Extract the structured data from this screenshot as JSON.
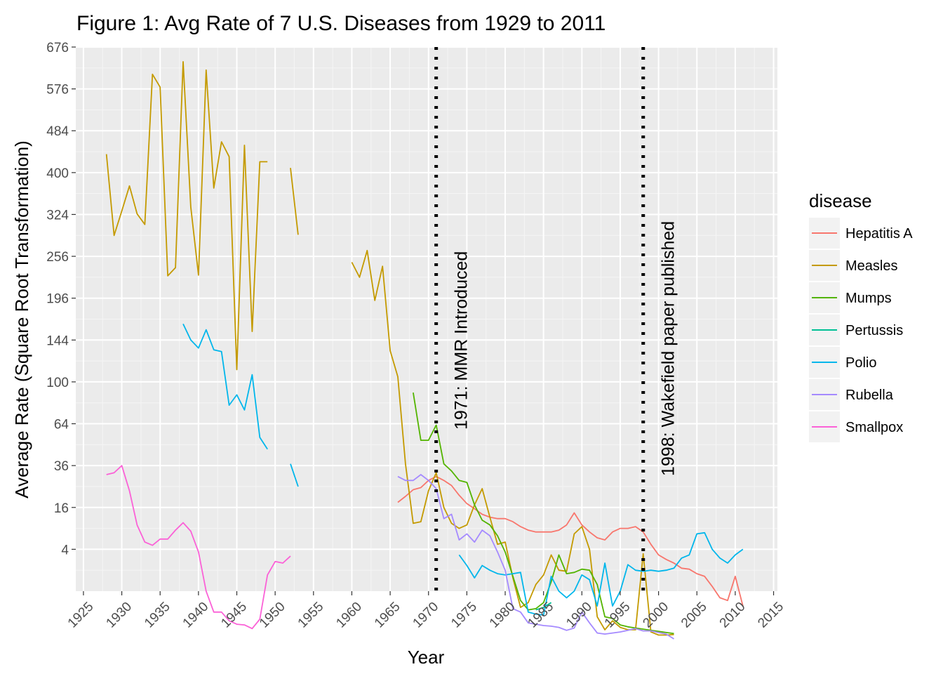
{
  "chart_data": {
    "type": "line",
    "title": "Figure 1: Avg Rate of 7 U.S. Diseases from 1929 to 2011",
    "xlabel": "Year",
    "ylabel": "Average Rate (Square Root Transformation)",
    "y_scale": "sqrt",
    "xlim": [
      1924,
      2015.5
    ],
    "ylim": [
      0,
      676
    ],
    "x_ticks": [
      1925,
      1930,
      1935,
      1940,
      1945,
      1950,
      1955,
      1960,
      1965,
      1970,
      1975,
      1980,
      1985,
      1990,
      1995,
      2000,
      2005,
      2010,
      2015
    ],
    "y_ticks": [
      4,
      16,
      36,
      64,
      100,
      144,
      196,
      256,
      324,
      400,
      484,
      576,
      676
    ],
    "grid": true,
    "legend": {
      "title": "disease",
      "placement": "right"
    },
    "annotations": [
      {
        "x": 1971,
        "text": "1971: MMR Introduced",
        "line": "dotted"
      },
      {
        "x": 1998,
        "text": "1998: Wakefield paper published",
        "line": "dotted"
      }
    ],
    "series": [
      {
        "name": "Hepatitis A",
        "color": "#F8766D",
        "points": [
          [
            1966,
            18
          ],
          [
            1967,
            20.5
          ],
          [
            1968,
            23.5
          ],
          [
            1969,
            24.5
          ],
          [
            1970,
            28
          ],
          [
            1971,
            30
          ],
          [
            1972,
            28
          ],
          [
            1973,
            25.5
          ],
          [
            1974,
            21
          ],
          [
            1975,
            17.5
          ],
          [
            1976,
            15.5
          ],
          [
            1977,
            13.5
          ],
          [
            1978,
            12.5
          ],
          [
            1979,
            12
          ],
          [
            1980,
            12
          ],
          [
            1981,
            11
          ],
          [
            1982,
            9.5
          ],
          [
            1983,
            8.5
          ],
          [
            1984,
            8
          ],
          [
            1985,
            8
          ],
          [
            1986,
            8
          ],
          [
            1987,
            8.5
          ],
          [
            1988,
            10
          ],
          [
            1989,
            14
          ],
          [
            1990,
            10
          ],
          [
            1991,
            8
          ],
          [
            1992,
            6.5
          ],
          [
            1993,
            6
          ],
          [
            1994,
            8
          ],
          [
            1995,
            9
          ],
          [
            1996,
            9
          ],
          [
            1997,
            9.5
          ],
          [
            1998,
            8
          ],
          [
            1999,
            5
          ],
          [
            2000,
            3
          ],
          [
            2001,
            2.3
          ],
          [
            2002,
            1.8
          ],
          [
            2003,
            1.2
          ],
          [
            2004,
            1.1
          ],
          [
            2005,
            0.7
          ],
          [
            2006,
            0.5
          ],
          [
            2007,
            0.05
          ],
          [
            2008,
            -0.1
          ],
          [
            2009,
            -0.2
          ],
          [
            2010,
            0.5
          ],
          [
            2011,
            -0.5
          ]
        ]
      },
      {
        "name": "Measles",
        "color": "#C49A00",
        "segments": [
          [
            [
              1928,
              436
            ],
            [
              1929,
              289
            ],
            [
              1930,
              330
            ],
            [
              1931,
              375
            ],
            [
              1932,
              325
            ],
            [
              1933,
              307
            ],
            [
              1934,
              610
            ],
            [
              1935,
              580
            ],
            [
              1936,
              227
            ],
            [
              1937,
              239
            ],
            [
              1938,
              640
            ],
            [
              1939,
              337
            ],
            [
              1940,
              228
            ],
            [
              1941,
              620
            ],
            [
              1942,
              371
            ],
            [
              1943,
              461
            ],
            [
              1944,
              431
            ],
            [
              1945,
              112
            ],
            [
              1946,
              454
            ],
            [
              1947,
              154
            ],
            [
              1948,
              421
            ],
            [
              1949,
              421
            ]
          ],
          [
            [
              1952,
              409
            ],
            [
              1953,
              290
            ]
          ],
          [
            [
              1960,
              247
            ],
            [
              1961,
              225
            ],
            [
              1962,
              265
            ],
            [
              1963,
              193
            ],
            [
              1964,
              241
            ],
            [
              1965,
              132
            ],
            [
              1966,
              105
            ],
            [
              1967,
              37
            ],
            [
              1968,
              10.5
            ],
            [
              1969,
              11
            ],
            [
              1970,
              23
            ],
            [
              1971,
              32
            ],
            [
              1972,
              16
            ],
            [
              1973,
              10.5
            ],
            [
              1974,
              9
            ],
            [
              1975,
              10
            ],
            [
              1976,
              17
            ],
            [
              1977,
              24
            ],
            [
              1978,
              12.5
            ],
            [
              1979,
              5
            ],
            [
              1980,
              5.5
            ],
            [
              1981,
              0.4
            ],
            [
              1982,
              -0.6
            ],
            [
              1983,
              -0.3
            ],
            [
              1984,
              0.1
            ],
            [
              1985,
              0.6
            ],
            [
              1986,
              3
            ],
            [
              1987,
              1
            ],
            [
              1988,
              0.9
            ],
            [
              1989,
              7.5
            ],
            [
              1990,
              9.5
            ],
            [
              1991,
              4
            ],
            [
              1992,
              -1.5
            ],
            [
              1993,
              -3.4
            ],
            [
              1994,
              -2
            ],
            [
              1995,
              -3
            ],
            [
              1996,
              -3.4
            ],
            [
              1997,
              -3.4
            ],
            [
              1998,
              3.2
            ],
            [
              1999,
              -3.8
            ],
            [
              2000,
              -4.4
            ],
            [
              2001,
              -4.4
            ],
            [
              2002,
              -4.3
            ]
          ]
        ]
      },
      {
        "name": "Mumps",
        "color": "#53B400",
        "points": [
          [
            1968,
            90
          ],
          [
            1969,
            52
          ],
          [
            1970,
            52
          ],
          [
            1971,
            63
          ],
          [
            1972,
            37
          ],
          [
            1973,
            33
          ],
          [
            1974,
            28
          ],
          [
            1975,
            27
          ],
          [
            1976,
            17
          ],
          [
            1977,
            11.5
          ],
          [
            1978,
            10
          ],
          [
            1979,
            7
          ],
          [
            1980,
            3.5
          ],
          [
            1981,
            0.5
          ],
          [
            1982,
            -0.2
          ],
          [
            1983,
            -0.8
          ],
          [
            1984,
            -0.7
          ],
          [
            1985,
            -0.3
          ],
          [
            1986,
            0.2
          ],
          [
            1987,
            3
          ],
          [
            1988,
            0.7
          ],
          [
            1989,
            0.8
          ],
          [
            1990,
            1.1
          ],
          [
            1991,
            1
          ],
          [
            1992,
            0.1
          ],
          [
            1993,
            -1.5
          ],
          [
            1994,
            -1.7
          ],
          [
            1995,
            -2.6
          ],
          [
            1996,
            -2.9
          ],
          [
            1997,
            -3.1
          ],
          [
            1998,
            -3.3
          ],
          [
            1999,
            -3.5
          ],
          [
            2000,
            -3.7
          ],
          [
            2001,
            -3.9
          ],
          [
            2002,
            -4.1
          ]
        ]
      },
      {
        "name": "Pertussis",
        "color": "#00C094",
        "points": [
          [
            1984,
            -0.8
          ],
          [
            1985,
            -0.6
          ],
          [
            1986,
            -0.3
          ]
        ]
      },
      {
        "name": "Polio",
        "color": "#00B6EB",
        "segments": [
          [
            [
              1938,
              163
            ],
            [
              1939,
              144
            ],
            [
              1940,
              135
            ],
            [
              1941,
              156
            ],
            [
              1942,
              133
            ],
            [
              1943,
              131
            ],
            [
              1944,
              79
            ],
            [
              1945,
              88
            ],
            [
              1946,
              75
            ],
            [
              1947,
              107
            ],
            [
              1948,
              54
            ],
            [
              1949,
              46
            ]
          ],
          [
            [
              1952,
              37
            ],
            [
              1953,
              25
            ]
          ],
          [
            [
              1974,
              3
            ],
            [
              1975,
              1.5
            ],
            [
              1976,
              0.4
            ],
            [
              1977,
              1.5
            ],
            [
              1978,
              1
            ],
            [
              1979,
              0.7
            ],
            [
              1980,
              0.6
            ],
            [
              1981,
              0.7
            ],
            [
              1982,
              0.8
            ],
            [
              1983,
              -1
            ],
            [
              1984,
              -1.2
            ],
            [
              1985,
              -1.3
            ],
            [
              1986,
              0.5
            ],
            [
              1987,
              0
            ],
            [
              1988,
              -0.1
            ],
            [
              1989,
              0
            ],
            [
              1990,
              0.6
            ],
            [
              1991,
              0.3
            ],
            [
              1992,
              -0.5
            ],
            [
              1993,
              1.8
            ],
            [
              1994,
              -0.5
            ],
            [
              1995,
              0
            ],
            [
              1996,
              1.6
            ],
            [
              1997,
              1
            ],
            [
              1998,
              0.9
            ],
            [
              1999,
              1
            ],
            [
              2000,
              0.9
            ],
            [
              2001,
              1
            ],
            [
              2002,
              1.2
            ],
            [
              2003,
              2.5
            ],
            [
              2004,
              3
            ],
            [
              2005,
              7.5
            ],
            [
              2006,
              7.8
            ],
            [
              2007,
              4
            ],
            [
              2008,
              2.5
            ],
            [
              2009,
              1.8
            ],
            [
              2010,
              3
            ],
            [
              2011,
              4
            ]
          ]
        ]
      },
      {
        "name": "Rubella",
        "color": "#A58AFF",
        "points": [
          [
            1966,
            30
          ],
          [
            1967,
            28
          ],
          [
            1968,
            28
          ],
          [
            1969,
            31
          ],
          [
            1970,
            28
          ],
          [
            1971,
            24
          ],
          [
            1972,
            12
          ],
          [
            1973,
            13.5
          ],
          [
            1974,
            6
          ],
          [
            1975,
            7.5
          ],
          [
            1976,
            5.5
          ],
          [
            1977,
            8.5
          ],
          [
            1978,
            7
          ],
          [
            1979,
            3.5
          ],
          [
            1980,
            1
          ],
          [
            1981,
            -0.7
          ],
          [
            1982,
            -1
          ],
          [
            1983,
            -2.3
          ],
          [
            1984,
            -2.5
          ],
          [
            1985,
            -2.7
          ],
          [
            1986,
            -2.8
          ],
          [
            1987,
            -3
          ],
          [
            1988,
            -3.5
          ],
          [
            1989,
            -3.1
          ],
          [
            1990,
            -1
          ],
          [
            1991,
            -2.3
          ],
          [
            1992,
            -4
          ],
          [
            1993,
            -4.2
          ],
          [
            1994,
            -4
          ],
          [
            1995,
            -3.8
          ],
          [
            1996,
            -3.5
          ],
          [
            1997,
            -3.2
          ],
          [
            1998,
            -3.6
          ],
          [
            1999,
            -3.6
          ],
          [
            2000,
            -3.9
          ],
          [
            2001,
            -4.2
          ],
          [
            2002,
            -5.2
          ]
        ]
      },
      {
        "name": "Smallpox",
        "color": "#FB61D7",
        "points": [
          [
            1928,
            31
          ],
          [
            1929,
            32
          ],
          [
            1930,
            36
          ],
          [
            1931,
            23
          ],
          [
            1932,
            10
          ],
          [
            1933,
            5.5
          ],
          [
            1934,
            4.8
          ],
          [
            1935,
            6.2
          ],
          [
            1936,
            6.2
          ],
          [
            1937,
            8.5
          ],
          [
            1938,
            10.7
          ],
          [
            1939,
            8.2
          ],
          [
            1940,
            3.5
          ],
          [
            1941,
            0
          ],
          [
            1942,
            -1
          ],
          [
            1943,
            -1
          ],
          [
            1944,
            -2
          ],
          [
            1945,
            -2.5
          ],
          [
            1946,
            -2.6
          ],
          [
            1947,
            -3.2
          ],
          [
            1948,
            -1.8
          ],
          [
            1949,
            0.6
          ],
          [
            1950,
            2
          ],
          [
            1951,
            1.8
          ],
          [
            1952,
            2.8
          ]
        ]
      }
    ]
  }
}
